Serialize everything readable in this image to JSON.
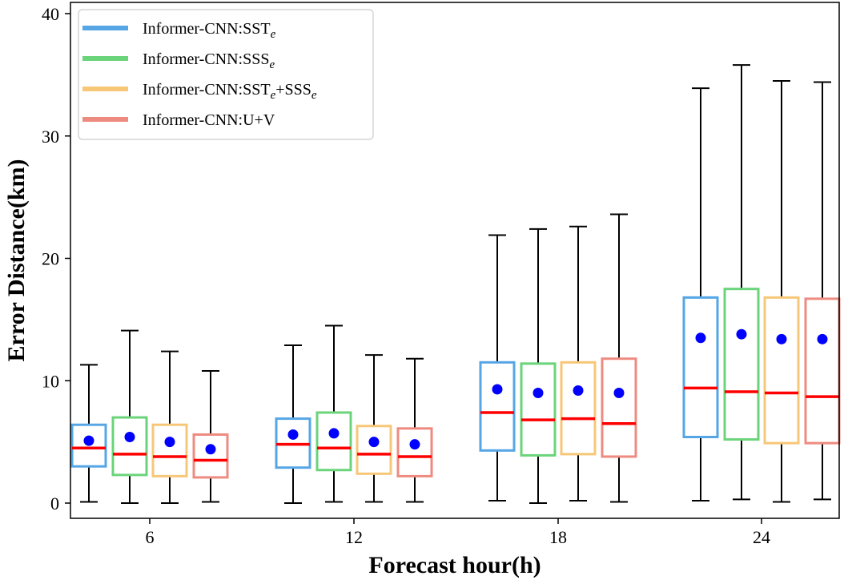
{
  "chart_data": {
    "type": "box",
    "xlabel": "Forecast hour(h)",
    "ylabel": "Error Distance(km)",
    "categories": [
      "6",
      "12",
      "18",
      "24"
    ],
    "ylim": [
      0,
      40
    ],
    "yticks": [
      0,
      10,
      20,
      30,
      40
    ],
    "grid": false,
    "legend_position": "top-left",
    "series": [
      {
        "name": "Informer-CNN:SST",
        "name_sub": "e",
        "color": "#56A6E6",
        "boxes": [
          {
            "whisker_low": 0.1,
            "q1": 3.0,
            "median": 4.5,
            "q3": 6.4,
            "whisker_high": 11.3,
            "mean": 5.1
          },
          {
            "whisker_low": 0.0,
            "q1": 2.9,
            "median": 4.8,
            "q3": 6.9,
            "whisker_high": 12.9,
            "mean": 5.6
          },
          {
            "whisker_low": 0.2,
            "q1": 4.3,
            "median": 7.4,
            "q3": 11.5,
            "whisker_high": 21.9,
            "mean": 9.3
          },
          {
            "whisker_low": 0.2,
            "q1": 5.4,
            "median": 9.4,
            "q3": 16.8,
            "whisker_high": 33.9,
            "mean": 13.5
          }
        ]
      },
      {
        "name": "Informer-CNN:SSS",
        "name_sub": "e",
        "color": "#6BD47A",
        "boxes": [
          {
            "whisker_low": 0.0,
            "q1": 2.3,
            "median": 4.0,
            "q3": 7.0,
            "whisker_high": 14.1,
            "mean": 5.4
          },
          {
            "whisker_low": 0.1,
            "q1": 2.7,
            "median": 4.5,
            "q3": 7.4,
            "whisker_high": 14.5,
            "mean": 5.7
          },
          {
            "whisker_low": 0.0,
            "q1": 3.9,
            "median": 6.8,
            "q3": 11.4,
            "whisker_high": 22.4,
            "mean": 9.0
          },
          {
            "whisker_low": 0.3,
            "q1": 5.2,
            "median": 9.1,
            "q3": 17.5,
            "whisker_high": 35.8,
            "mean": 13.8
          }
        ]
      },
      {
        "name": "Informer-CNN:SST",
        "name_sub": "e",
        "name_tail": "+SSS",
        "name_tail_sub": "e",
        "color": "#F7C778",
        "boxes": [
          {
            "whisker_low": 0.0,
            "q1": 2.2,
            "median": 3.8,
            "q3": 6.4,
            "whisker_high": 12.4,
            "mean": 5.0
          },
          {
            "whisker_low": 0.1,
            "q1": 2.4,
            "median": 4.0,
            "q3": 6.3,
            "whisker_high": 12.1,
            "mean": 5.0
          },
          {
            "whisker_low": 0.2,
            "q1": 4.0,
            "median": 6.9,
            "q3": 11.5,
            "whisker_high": 22.6,
            "mean": 9.2
          },
          {
            "whisker_low": 0.1,
            "q1": 4.9,
            "median": 9.0,
            "q3": 16.8,
            "whisker_high": 34.5,
            "mean": 13.4
          }
        ]
      },
      {
        "name": "Informer-CNN:U+V",
        "color": "#EE8B80",
        "boxes": [
          {
            "whisker_low": 0.1,
            "q1": 2.1,
            "median": 3.5,
            "q3": 5.6,
            "whisker_high": 10.8,
            "mean": 4.4
          },
          {
            "whisker_low": 0.1,
            "q1": 2.2,
            "median": 3.8,
            "q3": 6.1,
            "whisker_high": 11.8,
            "mean": 4.8
          },
          {
            "whisker_low": 0.1,
            "q1": 3.8,
            "median": 6.5,
            "q3": 11.8,
            "whisker_high": 23.6,
            "mean": 9.0
          },
          {
            "whisker_low": 0.3,
            "q1": 4.9,
            "median": 8.7,
            "q3": 16.7,
            "whisker_high": 34.4,
            "mean": 13.4
          }
        ]
      }
    ],
    "median_color": "#FF0000",
    "mean_color": "#0000FF",
    "whisker_color": "#000000"
  }
}
